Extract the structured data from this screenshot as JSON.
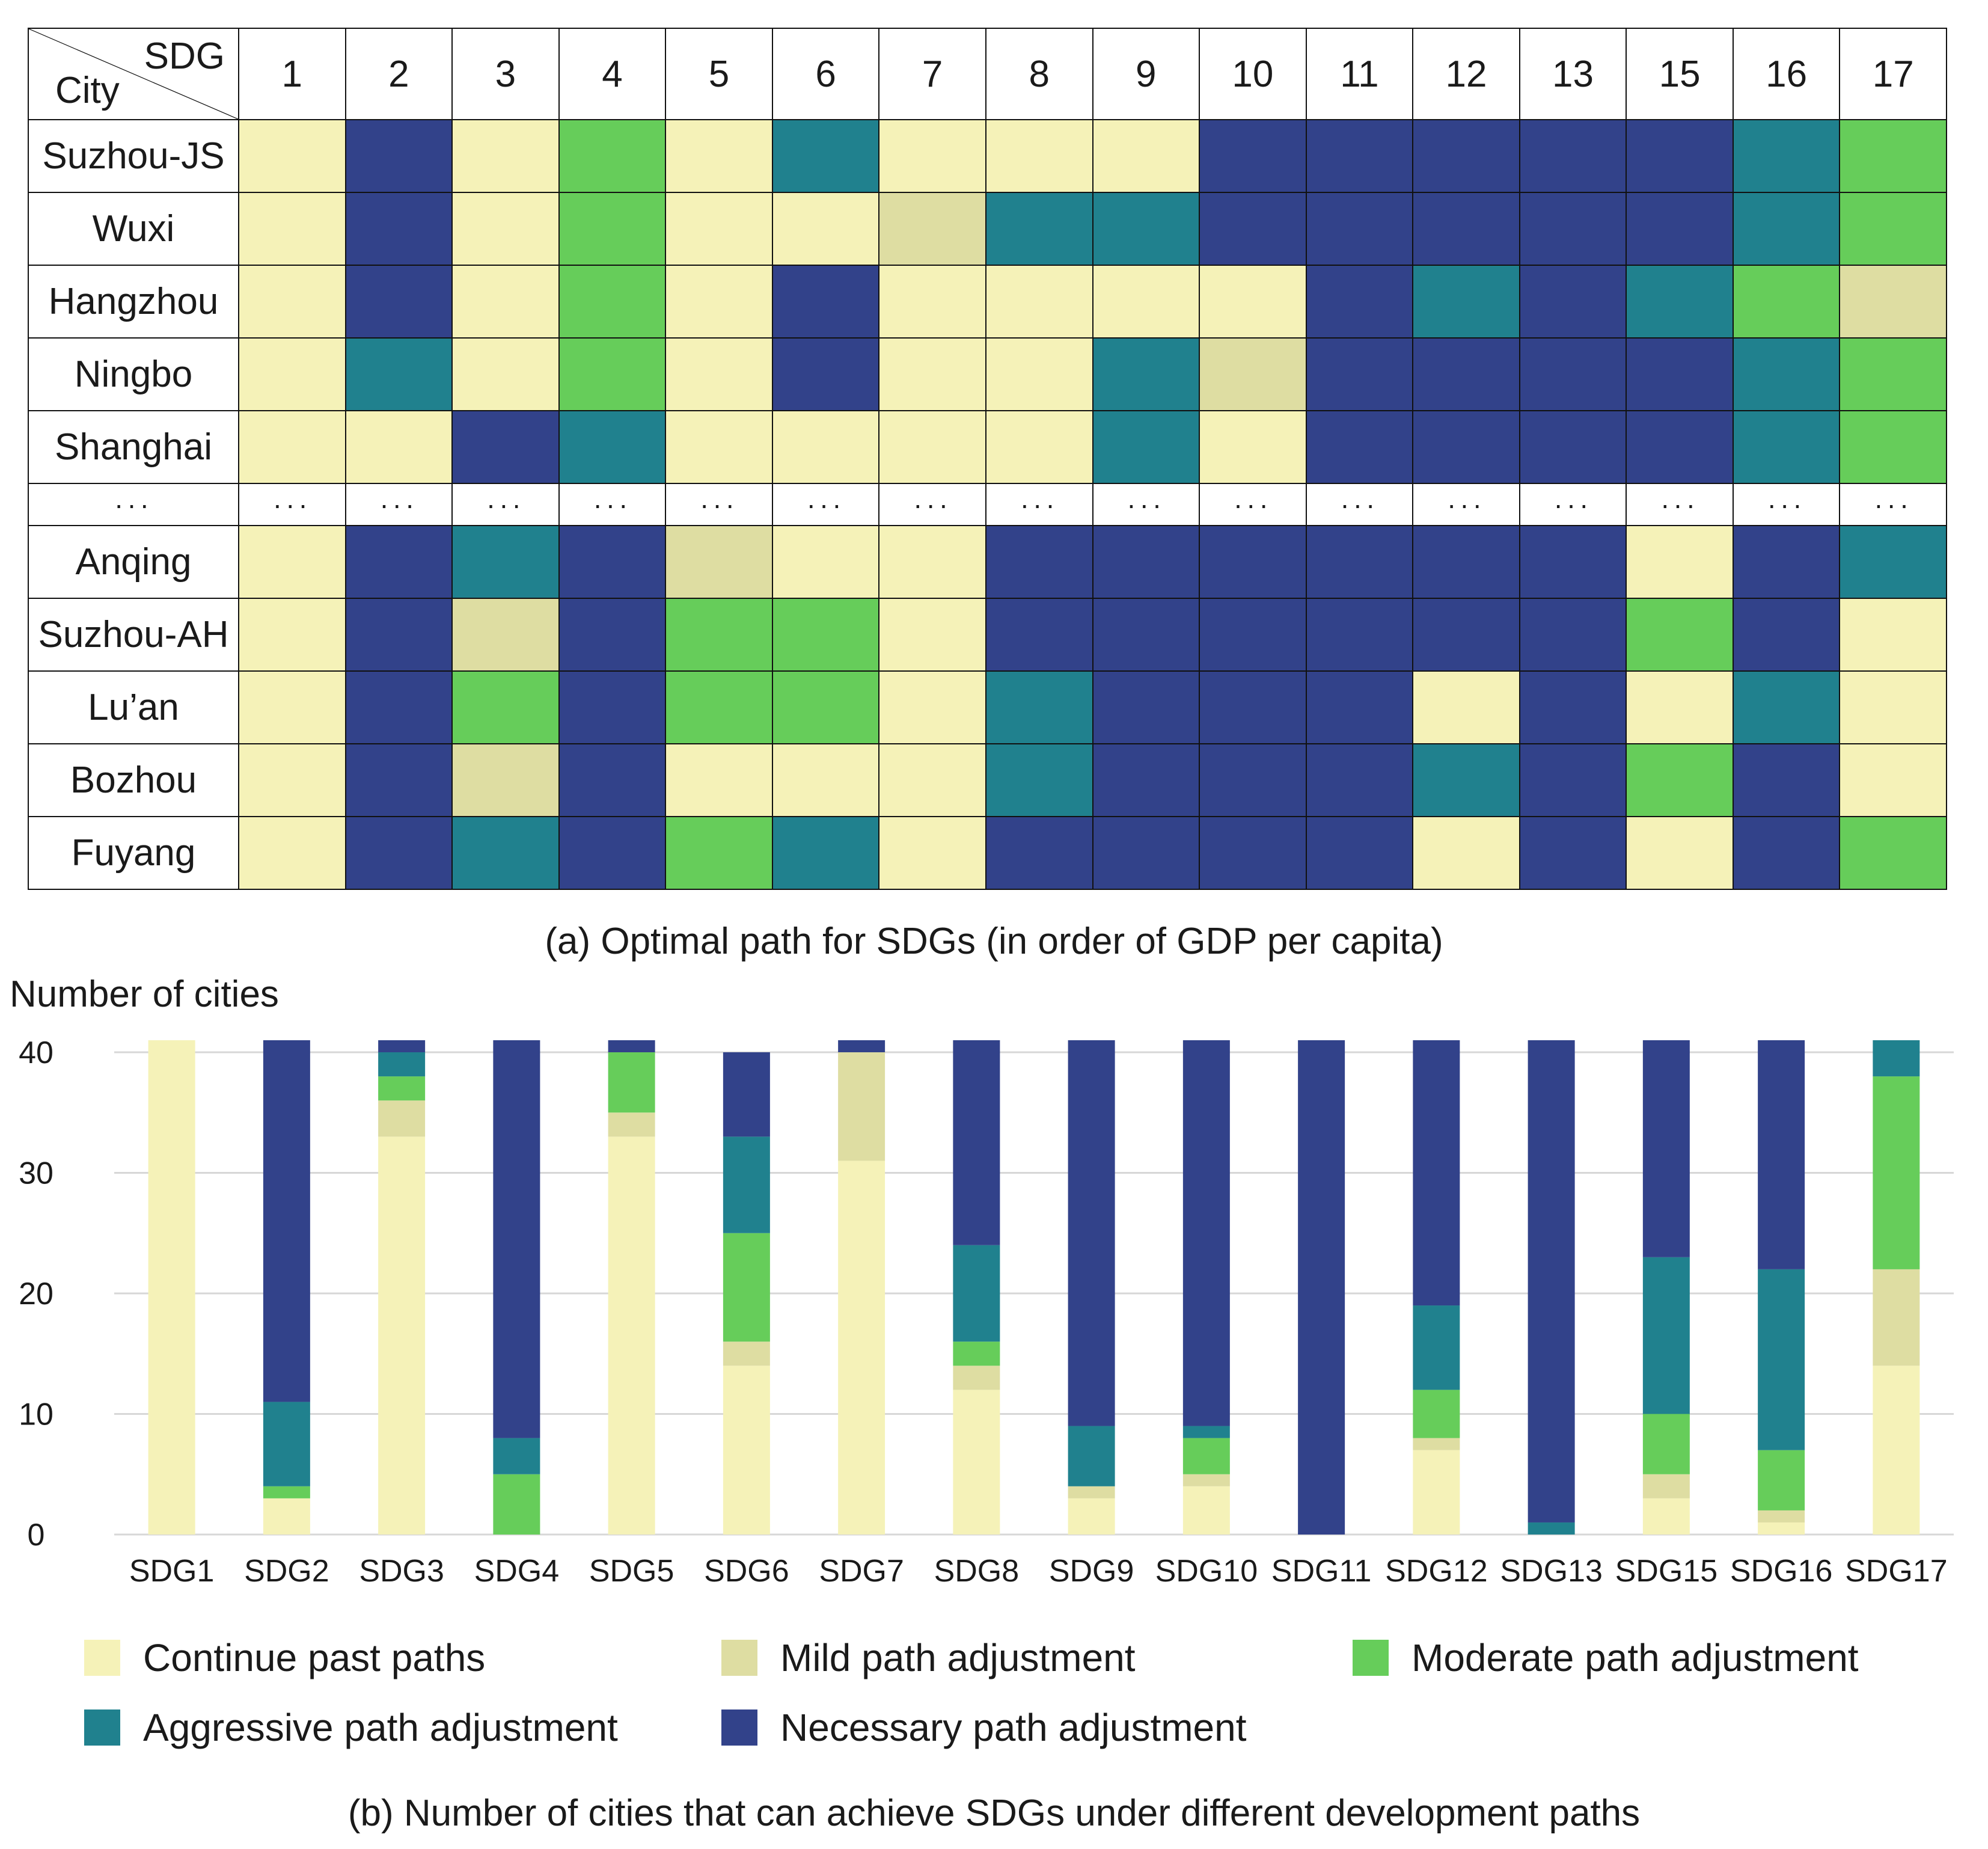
{
  "colors": {
    "C": "#f5f2b8",
    "M": "#dedda2",
    "O": "#66cd5a",
    "A": "#20818e",
    "N": "#32428a",
    "grid": "#d7d7d7"
  },
  "panel_a": {
    "corner_top": "SDG",
    "corner_bottom": "City",
    "sdg_headers": [
      "1",
      "2",
      "3",
      "4",
      "5",
      "6",
      "7",
      "8",
      "9",
      "10",
      "11",
      "12",
      "13",
      "15",
      "16",
      "17"
    ],
    "ellipsis": "···",
    "rows_top": [
      {
        "city": "Suzhou-JS",
        "cells": [
          "C",
          "N",
          "C",
          "O",
          "C",
          "A",
          "C",
          "C",
          "C",
          "N",
          "N",
          "N",
          "N",
          "N",
          "A",
          "O"
        ]
      },
      {
        "city": "Wuxi",
        "cells": [
          "C",
          "N",
          "C",
          "O",
          "C",
          "C",
          "M",
          "A",
          "A",
          "N",
          "N",
          "N",
          "N",
          "N",
          "A",
          "O"
        ]
      },
      {
        "city": "Hangzhou",
        "cells": [
          "C",
          "N",
          "C",
          "O",
          "C",
          "N",
          "C",
          "C",
          "C",
          "C",
          "N",
          "A",
          "N",
          "A",
          "O",
          "M"
        ]
      },
      {
        "city": "Ningbo",
        "cells": [
          "C",
          "A",
          "C",
          "O",
          "C",
          "N",
          "C",
          "C",
          "A",
          "M",
          "N",
          "N",
          "N",
          "N",
          "A",
          "O"
        ]
      },
      {
        "city": "Shanghai",
        "cells": [
          "C",
          "C",
          "N",
          "A",
          "C",
          "C",
          "C",
          "C",
          "A",
          "C",
          "N",
          "N",
          "N",
          "N",
          "A",
          "O"
        ]
      }
    ],
    "rows_bottom": [
      {
        "city": "Anqing",
        "cells": [
          "C",
          "N",
          "A",
          "N",
          "M",
          "C",
          "C",
          "N",
          "N",
          "N",
          "N",
          "N",
          "N",
          "C",
          "N",
          "A"
        ]
      },
      {
        "city": "Suzhou-AH",
        "cells": [
          "C",
          "N",
          "M",
          "N",
          "O",
          "O",
          "C",
          "N",
          "N",
          "N",
          "N",
          "N",
          "N",
          "O",
          "N",
          "C"
        ]
      },
      {
        "city": "Lu’an",
        "cells": [
          "C",
          "N",
          "O",
          "N",
          "O",
          "O",
          "C",
          "A",
          "N",
          "N",
          "N",
          "C",
          "N",
          "C",
          "A",
          "C"
        ]
      },
      {
        "city": "Bozhou",
        "cells": [
          "C",
          "N",
          "M",
          "N",
          "C",
          "C",
          "C",
          "A",
          "N",
          "N",
          "N",
          "A",
          "N",
          "O",
          "N",
          "C"
        ]
      },
      {
        "city": "Fuyang",
        "cells": [
          "C",
          "N",
          "A",
          "N",
          "O",
          "A",
          "C",
          "N",
          "N",
          "N",
          "N",
          "C",
          "N",
          "C",
          "N",
          "O"
        ]
      }
    ],
    "caption": "(a) Optimal path for SDGs (in order of GDP per capita)"
  },
  "chart_data": {
    "type": "bar",
    "stacked": true,
    "title": "",
    "ylabel": "Number of cities",
    "xlabel": "",
    "ylim": [
      0,
      40
    ],
    "yticks": [
      "0",
      "10",
      "20",
      "30",
      "40"
    ],
    "grid": true,
    "categories": [
      "SDG1",
      "SDG2",
      "SDG3",
      "SDG4",
      "SDG5",
      "SDG6",
      "SDG7",
      "SDG8",
      "SDG9",
      "SDG10",
      "SDG11",
      "SDG12",
      "SDG13",
      "SDG15",
      "SDG16",
      "SDG17"
    ],
    "series": [
      {
        "key": "C",
        "name": "Continue past paths",
        "values": [
          41,
          3,
          33,
          0,
          33,
          14,
          31,
          12,
          3,
          4,
          0,
          7,
          0,
          3,
          1,
          14
        ]
      },
      {
        "key": "M",
        "name": "Mild path adjustment",
        "values": [
          0,
          0,
          3,
          0,
          2,
          2,
          9,
          2,
          1,
          1,
          0,
          1,
          0,
          2,
          1,
          8
        ]
      },
      {
        "key": "O",
        "name": "Moderate path adjustment",
        "values": [
          0,
          1,
          2,
          5,
          5,
          9,
          0,
          2,
          0,
          3,
          0,
          4,
          0,
          5,
          5,
          16
        ]
      },
      {
        "key": "A",
        "name": "Aggressive path adjustment",
        "values": [
          0,
          7,
          2,
          3,
          0,
          8,
          0,
          8,
          5,
          1,
          0,
          7,
          1,
          13,
          15,
          3
        ]
      },
      {
        "key": "N",
        "name": "Necessary path adjustment",
        "values": [
          0,
          30,
          1,
          33,
          1,
          7,
          1,
          17,
          32,
          32,
          41,
          22,
          40,
          18,
          19,
          0
        ]
      }
    ],
    "caption": "(b) Number of cities that can achieve SDGs under different development paths"
  },
  "legend": [
    {
      "key": "C",
      "label": "Continue past paths"
    },
    {
      "key": "M",
      "label": "Mild path adjustment"
    },
    {
      "key": "O",
      "label": "Moderate path adjustment"
    },
    {
      "key": "A",
      "label": "Aggressive path adjustment"
    },
    {
      "key": "N",
      "label": "Necessary path adjustment"
    }
  ]
}
